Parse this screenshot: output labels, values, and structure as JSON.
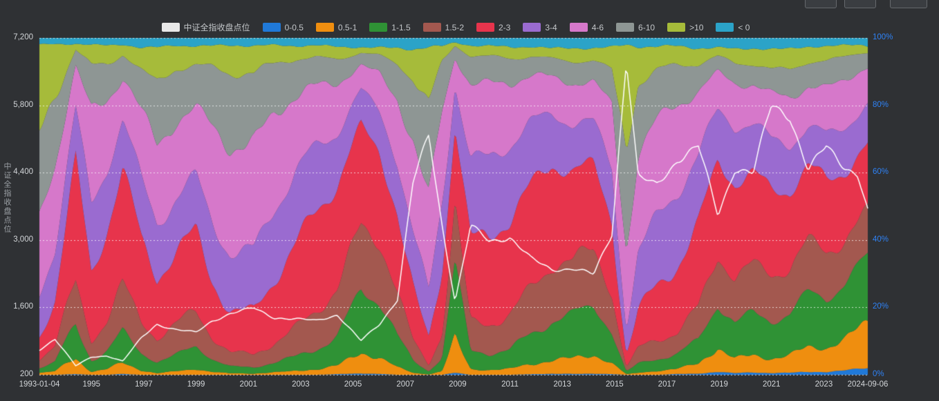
{
  "page": {
    "background": "#2f3134",
    "axis_text_color": "#d2d5d8"
  },
  "ylabel_left_title": "中证全指收盘点位",
  "chart_data": {
    "type": "area",
    "stacked_percent": true,
    "title": "",
    "ylabel_left": "中证全指收盘点位",
    "grid": "dashed-horizontal",
    "legend_position": "top-center",
    "x_axis": {
      "min": 1993.01,
      "max": 2024.68,
      "tick_positions": [
        1993.01,
        1995,
        1997,
        1999,
        2001,
        2003,
        2005,
        2007,
        2009,
        2011,
        2013,
        2015,
        2017,
        2019,
        2021,
        2023,
        2024.68
      ],
      "tick_labels": [
        "1993-01-04",
        "1995",
        "1997",
        "1999",
        "2001",
        "2003",
        "2005",
        "2007",
        "2009",
        "2011",
        "2013",
        "2015",
        "2017",
        "2019",
        "2021",
        "2023",
        "2024-09-06"
      ]
    },
    "y_left": {
      "min": 200,
      "max": 7200,
      "values": [
        200,
        1600,
        3000,
        4400,
        5800,
        7200
      ],
      "labels": [
        "200",
        "1,600",
        "3,000",
        "4,400",
        "5,800",
        "7,200"
      ]
    },
    "y_right": {
      "values": [
        0,
        20,
        40,
        60,
        80,
        100
      ],
      "labels": [
        "0%",
        "20%",
        "40%",
        "60%",
        "80%",
        "100%"
      ],
      "color": "#2f82f5"
    },
    "x_keyframes": [
      1993.0,
      1993.6,
      1994.4,
      1995.0,
      1995.6,
      1996.2,
      1996.9,
      1997.5,
      1998.2,
      1999.0,
      1999.6,
      2000.3,
      2001.2,
      2002.0,
      2002.8,
      2003.6,
      2004.4,
      2005.3,
      2006.0,
      2006.7,
      2007.3,
      2007.9,
      2008.4,
      2008.9,
      2009.5,
      2010.2,
      2011.0,
      2011.8,
      2012.6,
      2013.4,
      2014.2,
      2014.9,
      2015.45,
      2015.9,
      2016.6,
      2017.4,
      2018.2,
      2018.95,
      2019.6,
      2020.3,
      2021.0,
      2021.7,
      2022.4,
      2023.1,
      2023.8,
      2024.3,
      2024.68
    ],
    "series": [
      {
        "name": "0-0.5",
        "color": "#2079d8",
        "values": [
          0,
          0,
          0.2,
          0,
          0,
          0.3,
          0,
          0,
          0,
          0,
          0,
          0,
          0,
          0,
          0,
          0,
          0.2,
          0.5,
          0.3,
          0,
          0,
          0,
          0,
          0.5,
          0,
          0,
          0,
          0.2,
          0.3,
          0.3,
          0.4,
          0.2,
          0,
          0,
          0,
          0.2,
          0.3,
          0.8,
          0.5,
          0.8,
          0.6,
          0.7,
          1,
          0.9,
          1.2,
          1.6,
          1.8
        ]
      },
      {
        "name": "0.5-1",
        "color": "#ef8e0f",
        "values": [
          0.5,
          1,
          5,
          1,
          2,
          4,
          1.5,
          0.5,
          1,
          1.5,
          0.8,
          0.4,
          0.3,
          0.8,
          1.2,
          2,
          3,
          7,
          5,
          2,
          0.5,
          0.1,
          1,
          9,
          1.5,
          1.5,
          2,
          3.5,
          5,
          5,
          5.5,
          3,
          0.2,
          0.5,
          1,
          1.5,
          3,
          8,
          5,
          6,
          5,
          5.5,
          7,
          6.5,
          8,
          10,
          12
        ]
      },
      {
        "name": "1-1.5",
        "color": "#2f9235",
        "values": [
          1.5,
          3,
          12,
          4,
          6,
          10,
          5,
          3,
          4,
          6,
          3.5,
          2,
          2,
          3.5,
          5,
          7,
          9,
          18,
          15,
          8,
          3,
          0.8,
          4,
          22,
          6,
          6,
          7,
          10,
          12,
          12,
          13,
          8,
          0.8,
          2.5,
          3.5,
          5,
          8,
          16,
          12,
          13,
          11,
          11,
          14,
          13,
          15,
          17,
          19
        ]
      },
      {
        "name": "1.5-2",
        "color": "#a3584f",
        "values": [
          3,
          6,
          14,
          6,
          9,
          13,
          8,
          6,
          8,
          10,
          7,
          5,
          4.5,
          7,
          9,
          11,
          13,
          17,
          16,
          12,
          6,
          2,
          8,
          19,
          10,
          10,
          11,
          13,
          15,
          14,
          15,
          11,
          1.5,
          5,
          6.5,
          8,
          11,
          15,
          13,
          13,
          12,
          12,
          14,
          13.5,
          14,
          15,
          15
        ]
      },
      {
        "name": "2-3",
        "color": "#e7344c",
        "values": [
          7,
          14,
          34,
          18,
          24,
          30,
          22,
          17,
          22,
          26,
          20,
          15,
          14,
          19,
          23,
          26,
          28,
          28,
          28,
          26,
          18,
          9,
          22,
          26,
          26,
          25,
          26,
          27,
          27,
          26,
          26,
          24,
          5,
          14,
          18,
          21,
          24,
          25,
          25,
          24,
          23,
          23,
          24,
          24,
          24,
          23,
          22
        ]
      },
      {
        "name": "3-4",
        "color": "#9a6bd0",
        "values": [
          11,
          14,
          13,
          18,
          17,
          15,
          18,
          18,
          19,
          18,
          19,
          18,
          17,
          19,
          19,
          18,
          16,
          12,
          14,
          18,
          19,
          15,
          20,
          11,
          21,
          21,
          20,
          18,
          16,
          16,
          15,
          18,
          10,
          19,
          20,
          20,
          18,
          13,
          16,
          15,
          16,
          16,
          14,
          15,
          14,
          12.5,
          11.5
        ]
      },
      {
        "name": "4-6",
        "color": "#d678ca",
        "values": [
          20,
          22,
          12,
          28,
          22,
          15,
          24,
          26,
          24,
          20,
          26,
          28,
          29,
          26,
          23,
          20,
          17,
          9,
          12,
          18,
          26,
          27,
          24,
          7,
          20,
          21,
          19,
          16,
          13,
          14,
          13,
          18,
          22,
          27,
          26,
          23,
          18,
          11,
          14,
          14,
          16,
          15.5,
          13,
          13.5,
          12,
          11,
          10
        ]
      },
      {
        "name": "6-10",
        "color": "#8e9694",
        "values": [
          24,
          20,
          6,
          16,
          12,
          8,
          13,
          18,
          14,
          11,
          15,
          20,
          21,
          16,
          13,
          10,
          8,
          4,
          5,
          9,
          16,
          26,
          13,
          3,
          9,
          9,
          8.5,
          7,
          6,
          6.5,
          6,
          9,
          28,
          18,
          14,
          12,
          9,
          5.5,
          7,
          7,
          8,
          8,
          6.5,
          7,
          6,
          5,
          4
        ]
      },
      {
        "name": ">10",
        "color": "#a6bb3a",
        "values": [
          30,
          18,
          2,
          7,
          6,
          3,
          6,
          9,
          6,
          5,
          6,
          9,
          9.5,
          6.5,
          4.5,
          4,
          3.5,
          1.5,
          2,
          4,
          8,
          17,
          5,
          1,
          3.5,
          4,
          3.8,
          3,
          3,
          3.5,
          3.2,
          6,
          30,
          11,
          8,
          6.5,
          5.5,
          3,
          4.5,
          4.5,
          5.5,
          5.3,
          4,
          4,
          3.3,
          2.6,
          2
        ]
      },
      {
        "name": "< 0",
        "color": "#2ba3c8",
        "values": [
          2.5,
          2,
          1.8,
          2,
          2,
          1.7,
          2.5,
          2.5,
          2,
          2.5,
          2.7,
          2.6,
          2.7,
          2.4,
          2.3,
          2,
          2.3,
          2.5,
          2.7,
          3,
          3.5,
          3.1,
          3,
          1.5,
          2.5,
          2.5,
          2.7,
          2.3,
          2.7,
          2.7,
          2.9,
          2.8,
          2.5,
          3,
          3,
          2.8,
          3.2,
          2.7,
          3,
          2.7,
          2.9,
          3,
          2.5,
          2.6,
          2.5,
          2.3,
          2.7
        ]
      }
    ],
    "line_series": {
      "name": "中证全指收盘点位",
      "color": "#ffffff",
      "legend_swatch": "#e8e8e8",
      "values": [
        720,
        950,
        380,
        560,
        580,
        470,
        950,
        1250,
        1150,
        1100,
        1350,
        1500,
        1600,
        1380,
        1330,
        1300,
        1420,
        900,
        1250,
        1800,
        4300,
        5300,
        3400,
        1750,
        3300,
        2950,
        3000,
        2550,
        2350,
        2400,
        2300,
        3200,
        6950,
        4400,
        4200,
        4700,
        4900,
        3450,
        4400,
        4300,
        5750,
        5600,
        4500,
        5050,
        4650,
        4450,
        3650
      ]
    }
  }
}
